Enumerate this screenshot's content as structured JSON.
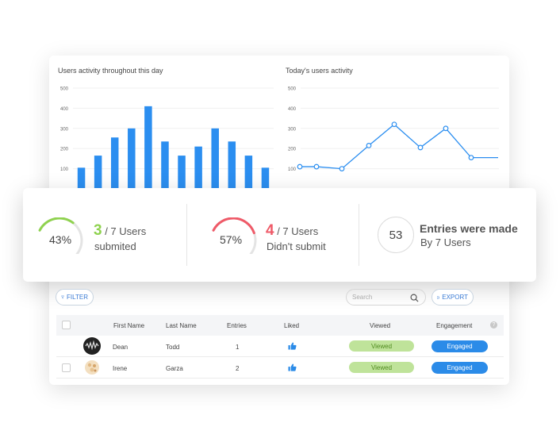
{
  "colors": {
    "bar": "#2b8ef0",
    "line": "#2b8ef0",
    "green": "#8fd24f",
    "red": "#ef5a68",
    "blue": "#2b8be8"
  },
  "charts": {
    "bar_title": "Users activity throughout this day",
    "line_title": "Today's users activity"
  },
  "chart_data": [
    {
      "type": "bar",
      "title": "Users activity throughout this day",
      "y_ticks": [
        "500",
        "400",
        "300",
        "200",
        "100"
      ],
      "ylim": [
        0,
        500
      ],
      "values": [
        105,
        165,
        255,
        300,
        410,
        235,
        165,
        210,
        300,
        235,
        165,
        105
      ]
    },
    {
      "type": "line",
      "title": "Today's users activity",
      "y_ticks": [
        "500",
        "400",
        "300",
        "200",
        "100"
      ],
      "ylim": [
        0,
        500
      ],
      "values": [
        110,
        110,
        100,
        215,
        320,
        205,
        300,
        155,
        155
      ]
    }
  ],
  "stats": {
    "submitted": {
      "percent": "43%",
      "percent_value": 43,
      "count": "3",
      "of": " / 7 Users",
      "label": "submited"
    },
    "not_submitted": {
      "percent": "57%",
      "percent_value": 57,
      "count": "4",
      "of": " / 7 Users",
      "label": "Didn't submit"
    },
    "entries": {
      "count": "53",
      "title": "Entries were made",
      "subtitle": "By 7 Users"
    }
  },
  "toolbar": {
    "filter_label": "FILTER",
    "search_placeholder": "Search",
    "export_label": "EXPORT"
  },
  "table": {
    "headers": {
      "first": "First Name",
      "last": "Last Name",
      "entries": "Entries",
      "liked": "Liked",
      "viewed": "Viewed",
      "engagement": "Engagement"
    },
    "rows": [
      {
        "first": "Dean",
        "last": "Todd",
        "entries": "1",
        "viewed": "Viewed",
        "engagement": "Engaged",
        "avatar": "avatar-dark-icon"
      },
      {
        "first": "Irene",
        "last": "Garza",
        "entries": "2",
        "viewed": "Viewed",
        "engagement": "Engaged",
        "avatar": "avatar-light-icon"
      }
    ]
  }
}
